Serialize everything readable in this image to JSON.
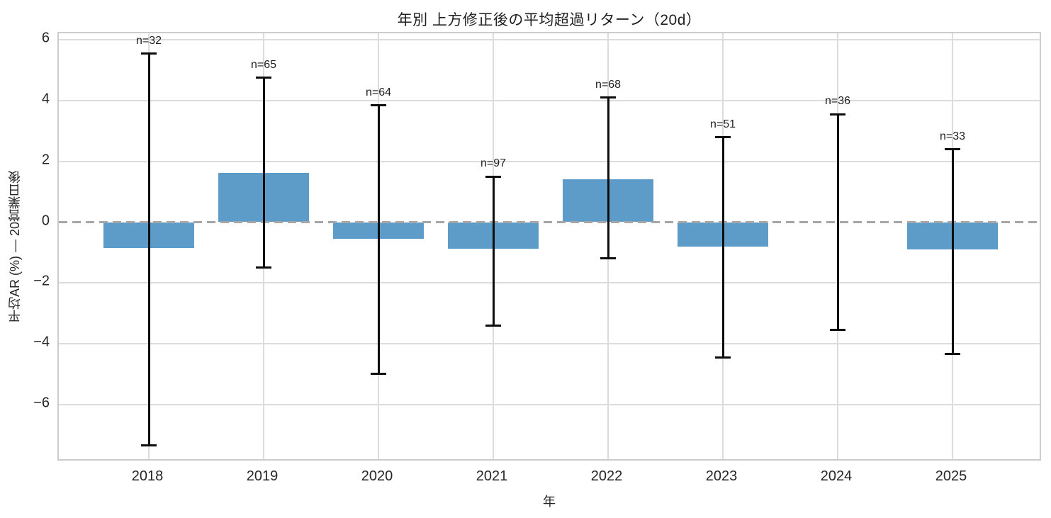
{
  "figure": {
    "title": "年別 上方修正後の平均超過リターン（20d）",
    "xlabel": "年",
    "ylabel": "平均AR (%) — 20営業日後"
  },
  "chart_data": {
    "type": "bar",
    "title": "年別 上方修正後の平均超過リターン（20d）",
    "xlabel": "年",
    "ylabel": "平均AR (%) — 20営業日後",
    "categories": [
      "2018",
      "2019",
      "2020",
      "2021",
      "2022",
      "2023",
      "2024",
      "2025"
    ],
    "series": [
      {
        "name": "平均AR (%)",
        "values": [
          -0.85,
          1.63,
          -0.55,
          -0.88,
          1.42,
          -0.8,
          0.0,
          -0.9
        ]
      }
    ],
    "error_bars": {
      "high": [
        5.55,
        4.75,
        3.85,
        1.5,
        4.1,
        2.8,
        3.55,
        2.4
      ],
      "low": [
        -7.35,
        -1.5,
        -5.0,
        -3.4,
        -1.2,
        -4.45,
        -3.55,
        -4.35
      ]
    },
    "point_labels": [
      "n=32",
      "n=65",
      "n=64",
      "n=97",
      "n=68",
      "n=51",
      "n=36",
      "n=33"
    ],
    "n_values": [
      32,
      65,
      64,
      97,
      68,
      51,
      36,
      33
    ],
    "ytick_values": [
      6,
      4,
      2,
      0,
      -2,
      -4,
      -6
    ],
    "ytick_labels": [
      "6",
      "4",
      "2",
      "0",
      "−2",
      "−4",
      "−6"
    ],
    "ylim": [
      -7.9,
      6.22
    ],
    "grid": true,
    "zero_line_style": "dashed",
    "legend": "none",
    "colors": {
      "bar": "#5d9cc9",
      "error_bar": "#0d0d0d",
      "grid": "#dcdcdc",
      "zero_line": "#a6a6a6",
      "spine": "#cccccc",
      "text": "#262626",
      "background": "#ffffff"
    }
  }
}
